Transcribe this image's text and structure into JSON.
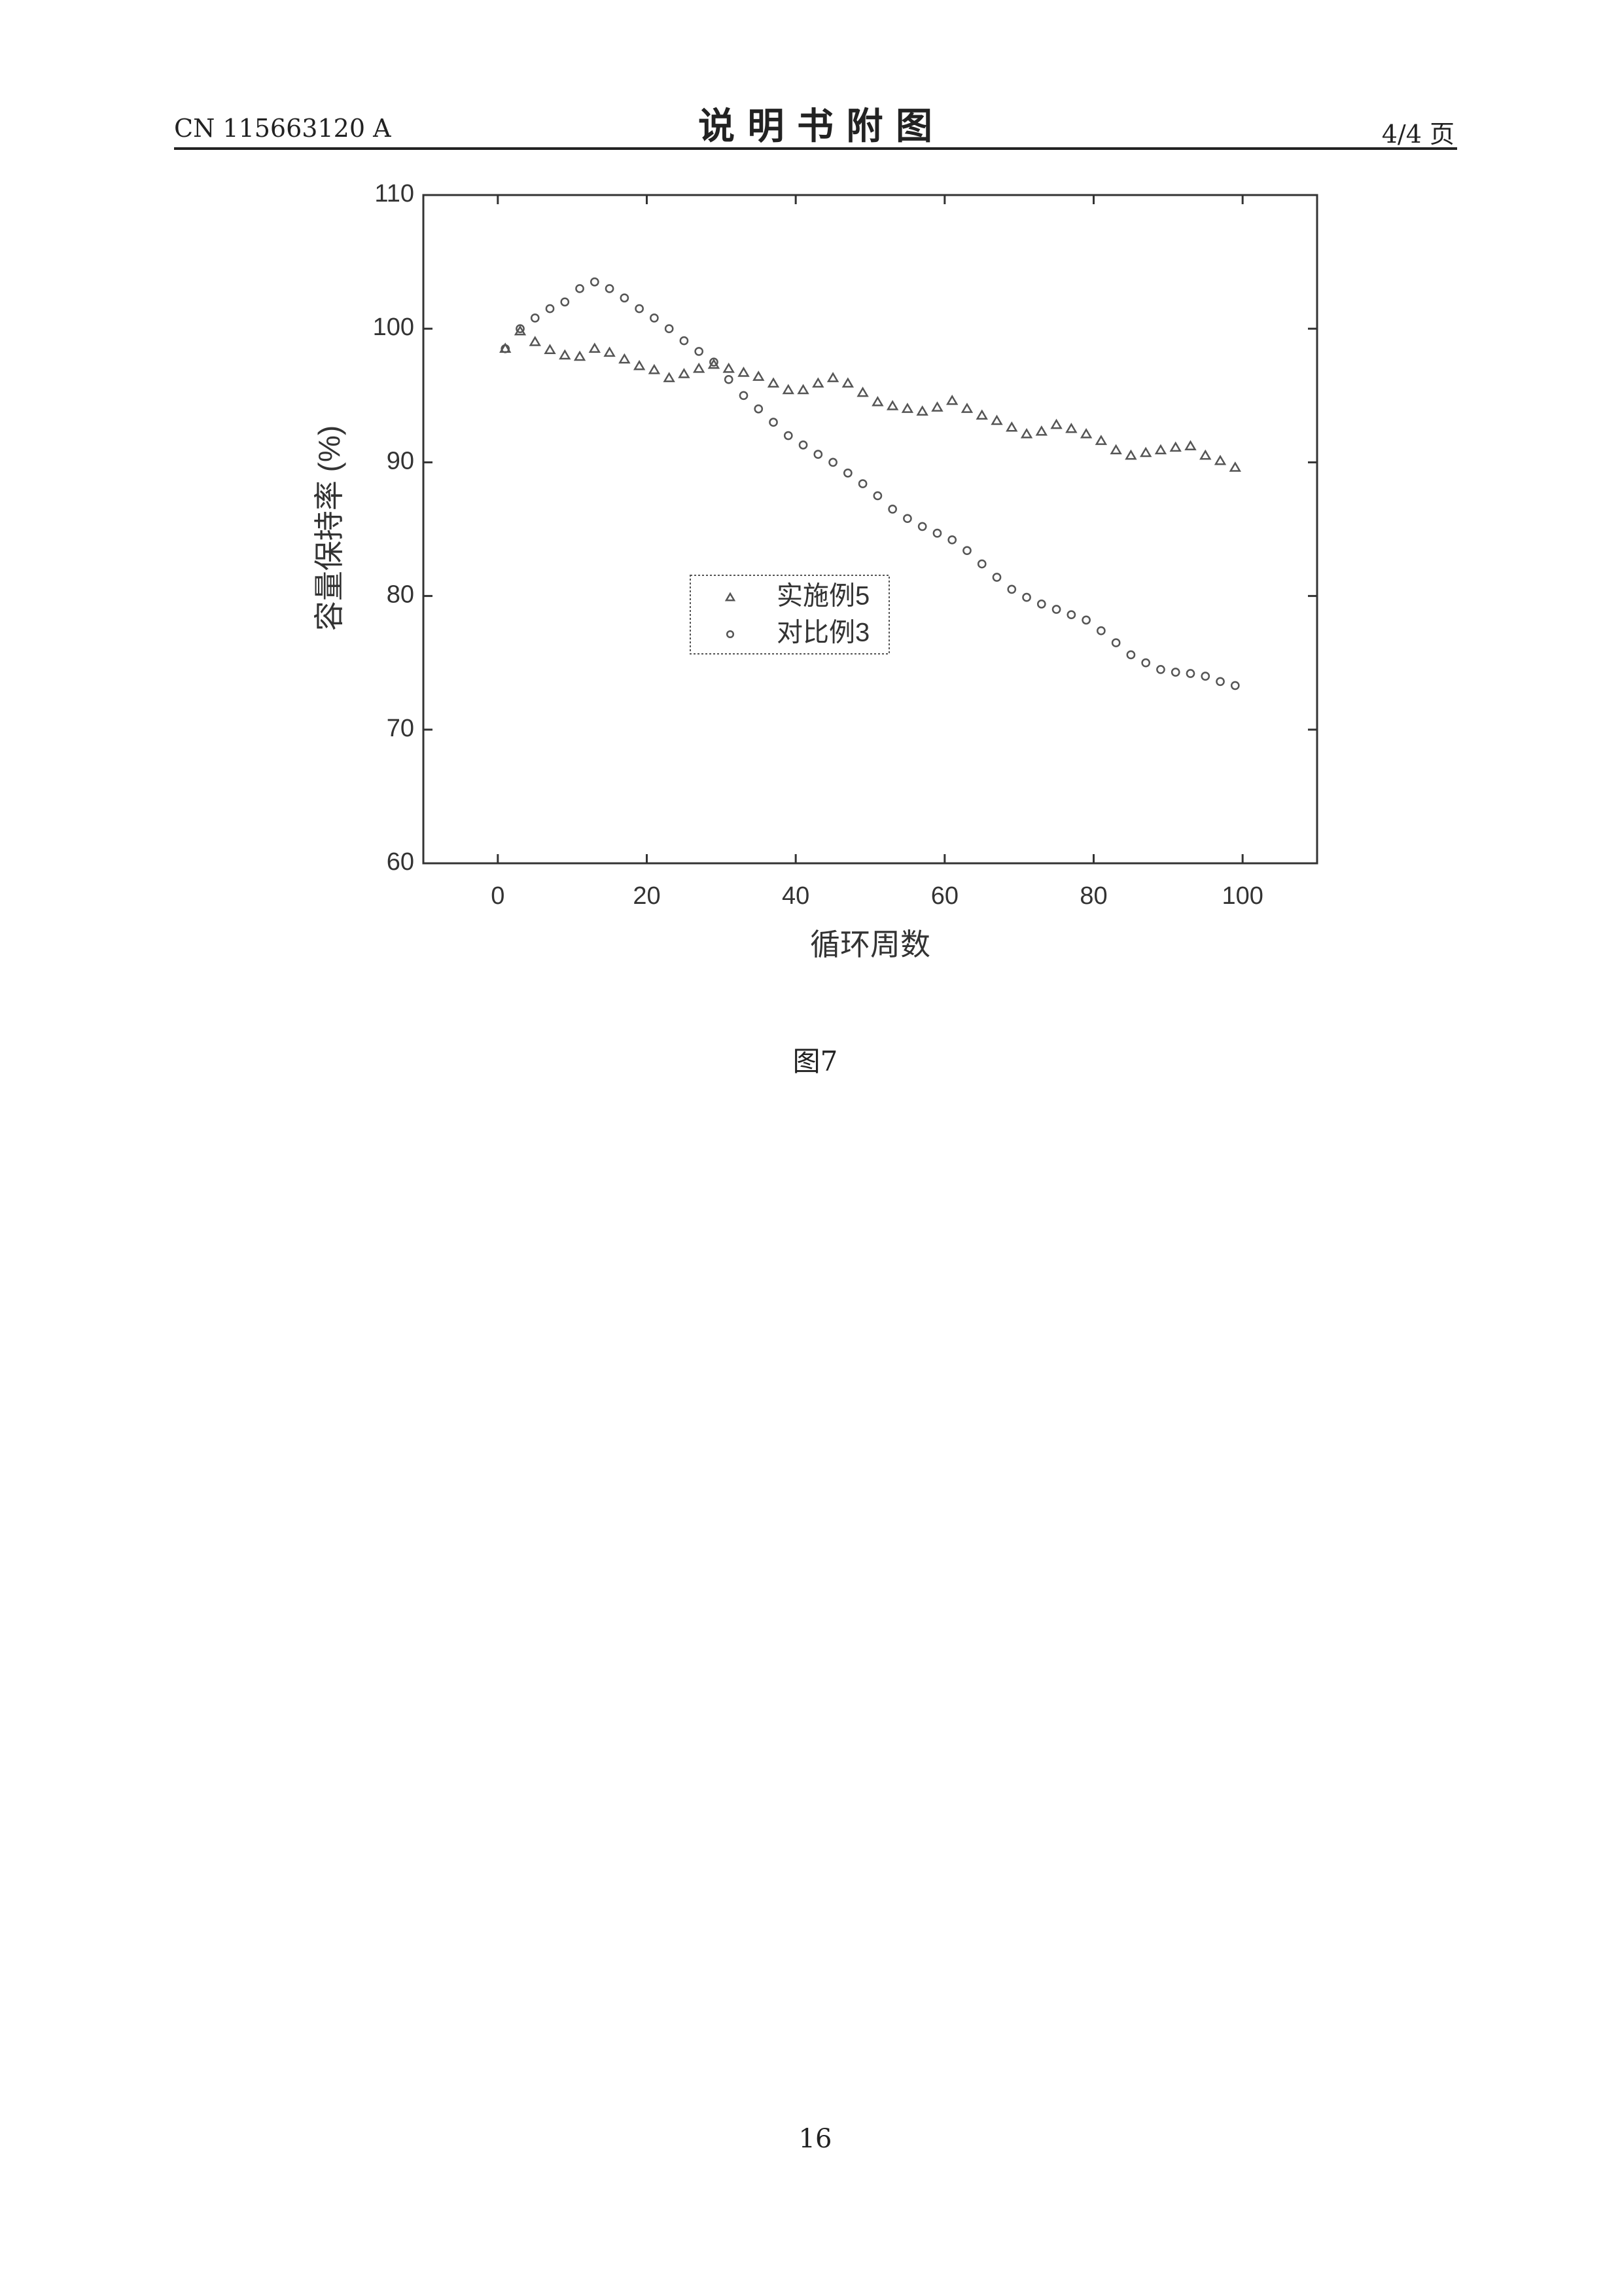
{
  "header": {
    "code": "CN 115663120 A",
    "title": "说 明 书 附 图",
    "page": "4/4 页"
  },
  "chart_data": {
    "type": "scatter",
    "xlabel": "循环周数",
    "ylabel": "容量保持率 (%)",
    "xlim": [
      -10,
      110
    ],
    "ylim": [
      60,
      110
    ],
    "xticks": [
      0,
      20,
      40,
      60,
      80,
      100
    ],
    "yticks": [
      60,
      70,
      80,
      90,
      100,
      110
    ],
    "x": [
      1,
      3,
      5,
      7,
      9,
      11,
      13,
      15,
      17,
      19,
      21,
      23,
      25,
      27,
      29,
      31,
      33,
      35,
      37,
      39,
      41,
      43,
      45,
      47,
      49,
      51,
      53,
      55,
      57,
      59,
      61,
      63,
      65,
      67,
      69,
      71,
      73,
      75,
      77,
      79,
      81,
      83,
      85,
      87,
      89,
      91,
      93,
      95,
      97,
      99
    ],
    "series": [
      {
        "name": "实施例5",
        "color": "#555555",
        "marker": "triangle",
        "values": [
          98.5,
          99.8,
          99.0,
          98.4,
          98.0,
          97.9,
          98.5,
          98.2,
          97.7,
          97.2,
          96.9,
          96.3,
          96.6,
          97.0,
          97.3,
          97.0,
          96.7,
          96.4,
          95.9,
          95.4,
          95.4,
          95.9,
          96.3,
          95.9,
          95.2,
          94.5,
          94.2,
          94.0,
          93.8,
          94.1,
          94.6,
          94.0,
          93.5,
          93.1,
          92.6,
          92.1,
          92.3,
          92.8,
          92.5,
          92.1,
          91.6,
          90.9,
          90.5,
          90.7,
          90.9,
          91.1,
          91.2,
          90.5,
          90.1,
          89.6
        ]
      },
      {
        "name": "对比例3",
        "color": "#555555",
        "marker": "circle",
        "values": [
          98.5,
          100.0,
          100.8,
          101.5,
          102.0,
          103.0,
          103.5,
          103.0,
          102.3,
          101.5,
          100.8,
          100.0,
          99.1,
          98.3,
          97.5,
          96.2,
          95.0,
          94.0,
          93.0,
          92.0,
          91.3,
          90.6,
          90.0,
          89.2,
          88.4,
          87.5,
          86.5,
          85.8,
          85.2,
          84.7,
          84.2,
          83.4,
          82.4,
          81.4,
          80.5,
          79.9,
          79.4,
          79.0,
          78.6,
          78.2,
          77.4,
          76.5,
          75.6,
          75.0,
          74.5,
          74.3,
          74.2,
          74.0,
          73.6,
          73.3
        ]
      }
    ]
  },
  "caption": "图7",
  "page_number": "16"
}
